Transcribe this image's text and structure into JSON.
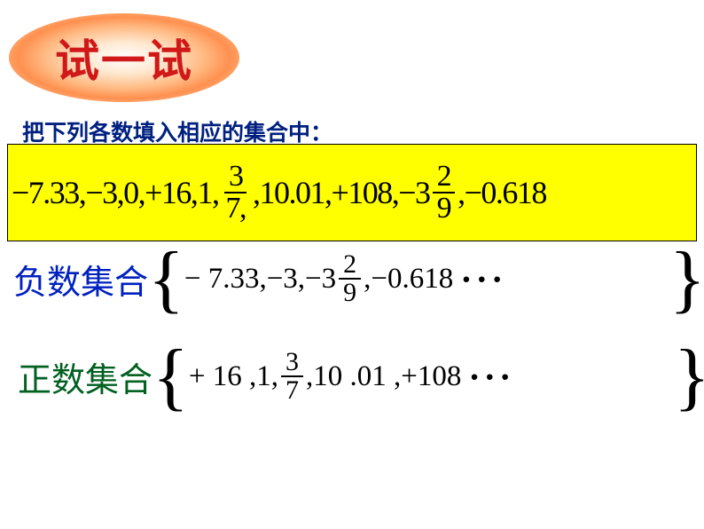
{
  "badge": {
    "text": "试一试",
    "text_color": "#d01818",
    "fontsize": 50
  },
  "instruction": {
    "text": "把下列各数填入相应的集合中：",
    "color": "#002080",
    "fontsize": 25
  },
  "number_box": {
    "background": "#ffff00",
    "border_color": "#000000",
    "items": {
      "n1": "−7.33,",
      "n2": "−3,",
      "n3": "0,",
      "n4": "+16,",
      "n5": "1,",
      "f1_num": "3",
      "f1_den": "7,",
      "n6": ",10.01,",
      "n7": "+108,",
      "mix_whole": "−3",
      "mix_num": "2",
      "mix_den": "9",
      "n8": ",−0.618"
    },
    "fontsize": 36
  },
  "negative_set": {
    "label": "负数集合",
    "label_color": "#0020c0",
    "open_brace": "{",
    "close_brace": "}",
    "content": {
      "t1": "− 7.33,−3,−3",
      "f_num": "2",
      "f_den": "9",
      "t2": ",−0.618",
      "dots": "···"
    }
  },
  "positive_set": {
    "label": "正数集合",
    "label_color": "#006020",
    "open_brace": "{",
    "close_brace": "}",
    "content": {
      "t1": "+ 16 ,1,",
      "f_num": "3",
      "f_den": "7",
      "t2": ",10 .01 ,+108",
      "dots": "···"
    }
  },
  "colors": {
    "background": "#ffffff",
    "text": "#000000"
  }
}
